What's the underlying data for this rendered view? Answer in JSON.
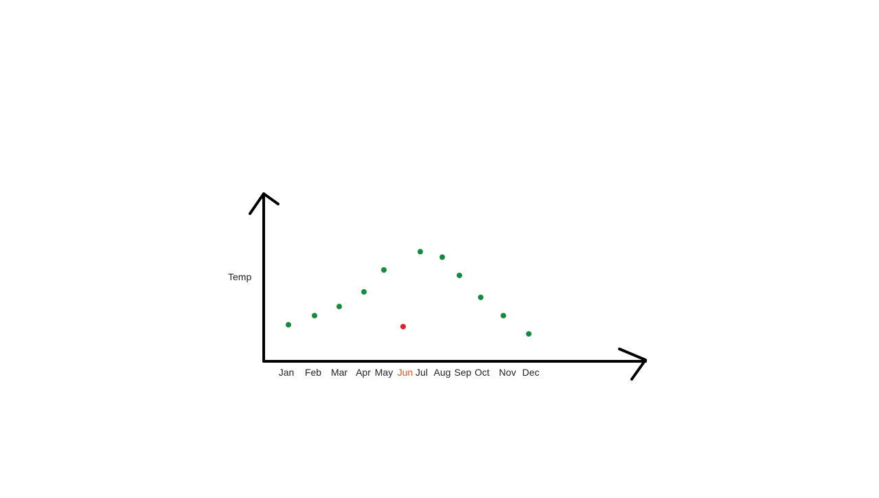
{
  "chart_data": {
    "type": "scatter",
    "ylabel": "Temp",
    "xlabel": "",
    "categories": [
      "Jan",
      "Feb",
      "Mar",
      "Apr",
      "May",
      "Jun",
      "Jul",
      "Aug",
      "Sep",
      "Oct",
      "Nov",
      "Dec"
    ],
    "values": [
      2.0,
      2.5,
      3.0,
      3.8,
      5.0,
      1.9,
      6.0,
      5.7,
      4.7,
      3.5,
      2.5,
      1.5
    ],
    "ylim": [
      0,
      9
    ],
    "grid": false,
    "highlight": {
      "category": "Jun",
      "color": "#e0202a",
      "label_color": "#e8541a"
    },
    "point_color": "#138a3c",
    "label_color": "#222222"
  }
}
